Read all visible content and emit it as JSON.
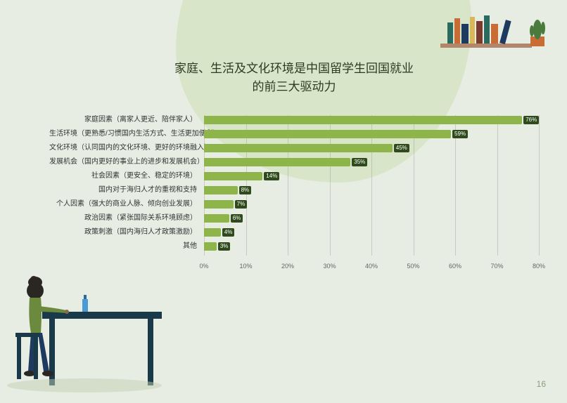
{
  "title_line1": "家庭、生活及文化环境是中国留学生回国就业",
  "title_line2": "的前三大驱动力",
  "page_number": "16",
  "bar_color": "#8eb54a",
  "bar_value_bg": "#2f4a1c",
  "background_color": "#e8ede4",
  "grid_color": "rgba(140,140,140,0.35)",
  "x_axis": {
    "min": 0,
    "max": 80,
    "step": 10,
    "ticks": [
      "0%",
      "10%",
      "20%",
      "30%",
      "40%",
      "50%",
      "60%",
      "70%",
      "80%"
    ]
  },
  "bars": [
    {
      "label": "家庭因素（离家人更近、陪伴家人）",
      "value": 76,
      "display": "76%"
    },
    {
      "label": "生活环境（更熟悉/习惯国内生活方式、生活更加便利）",
      "value": 59,
      "display": "59%"
    },
    {
      "label": "文化环境（认同国内的文化环境、更好的环境融入）",
      "value": 45,
      "display": "45%"
    },
    {
      "label": "发展机会（国内更好的事业上的进步和发展机会）",
      "value": 35,
      "display": "35%"
    },
    {
      "label": "社会因素（更安全、稳定的环境）",
      "value": 14,
      "display": "14%"
    },
    {
      "label": "国内对于海归人才的重视和支持",
      "value": 8,
      "display": "8%"
    },
    {
      "label": "个人因素（强大的商业人脉、倾向创业发展）",
      "value": 7,
      "display": "7%"
    },
    {
      "label": "政治因素（紧张国际关系环境顾虑）",
      "value": 6,
      "display": "6%"
    },
    {
      "label": "政策刺激（国内海归人才政策激励）",
      "value": 4,
      "display": "4%"
    },
    {
      "label": "其他",
      "value": 3,
      "display": "3%"
    }
  ]
}
